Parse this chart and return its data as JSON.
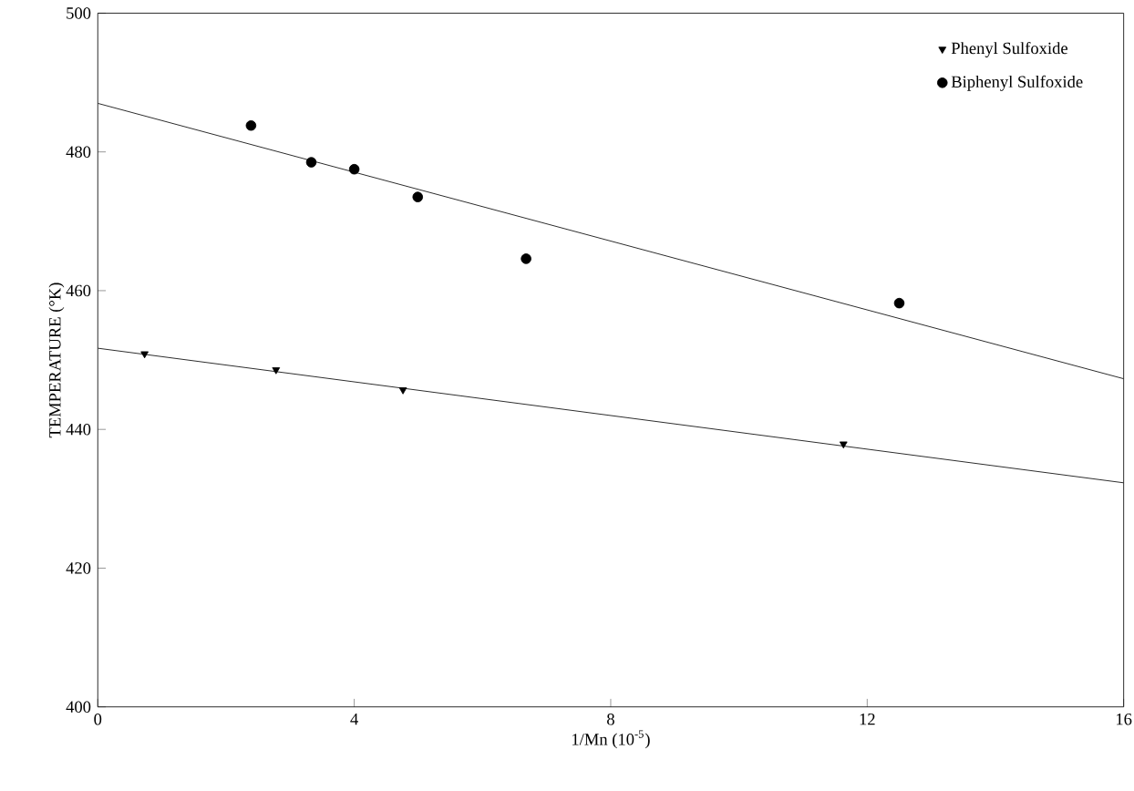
{
  "chart_data": {
    "type": "scatter",
    "xlabel": "1/Mn (10$^{-5}$)",
    "ylabel": "TEMPERATURE (°K)",
    "xlim": [
      0,
      16
    ],
    "ylim": [
      400,
      500
    ],
    "xticks": [
      0,
      4,
      8,
      12,
      16
    ],
    "yticks": [
      400,
      420,
      440,
      460,
      480,
      500
    ],
    "legend": "top right",
    "grid": false,
    "series": [
      {
        "name": "Phenyl Sulfoxide",
        "marker": "triangle",
        "color": "#000000",
        "x": [
          0.73,
          2.78,
          4.76,
          11.63
        ],
        "values": [
          450.9,
          448.6,
          445.7,
          437.9
        ]
      },
      {
        "name": "Biphenyl Sulfoxide",
        "marker": "circle",
        "color": "#000000",
        "x": [
          2.39,
          3.33,
          4.0,
          4.99,
          6.68,
          12.5
        ],
        "values": [
          483.8,
          478.5,
          477.5,
          473.5,
          464.6,
          458.2
        ]
      },
      {
        "type": "line",
        "marker": "none",
        "color": "#000000",
        "x": [
          0,
          16
        ],
        "values": [
          451.7,
          432.3
        ]
      },
      {
        "type": "line",
        "marker": "none",
        "color": "#000000",
        "x": [
          0,
          16
        ],
        "values": [
          487,
          447.3
        ]
      }
    ]
  }
}
